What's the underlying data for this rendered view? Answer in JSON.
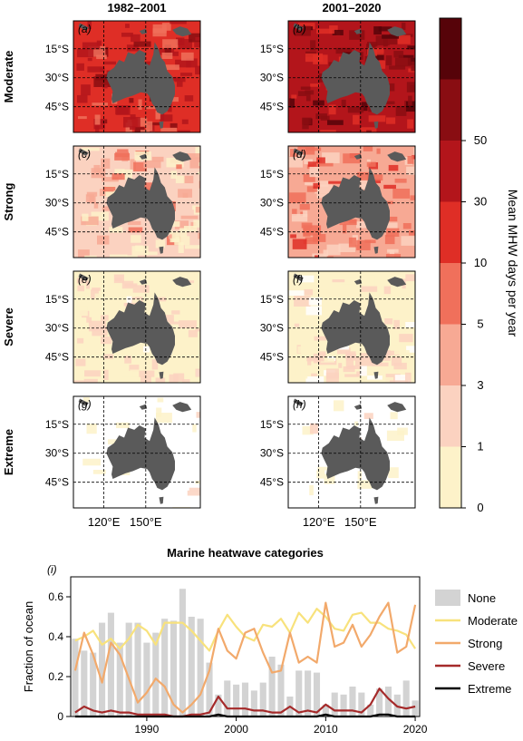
{
  "figure": {
    "period_headers": [
      "1982–2001",
      "2001–2020"
    ],
    "row_labels": [
      "Moderate",
      "Strong",
      "Severe",
      "Extreme"
    ],
    "panel_letters": [
      "(a)",
      "(b)",
      "(c)",
      "(d)",
      "(e)",
      "(f)",
      "(g)",
      "(h)"
    ],
    "lat_labels": [
      "15°S",
      "30°S",
      "45°S"
    ],
    "lon_labels": [
      "120°E",
      "150°E"
    ],
    "colorbar": {
      "title": "Mean MHW days per year",
      "bounds": [
        "0",
        "1",
        "3",
        "5",
        "10",
        "30",
        "50"
      ],
      "colors": [
        "#fdf2c9",
        "#fbd2c0",
        "#f7a994",
        "#f0705b",
        "#df2e26",
        "#b3151b",
        "#890d12",
        "#560309"
      ]
    },
    "maps": [
      {
        "panel": "(a)",
        "period": "1982–2001",
        "category": "Moderate",
        "ocean_level": 4
      },
      {
        "panel": "(b)",
        "period": "2001–2020",
        "category": "Moderate",
        "ocean_level": 5
      },
      {
        "panel": "(c)",
        "period": "1982–2001",
        "category": "Strong",
        "ocean_level": 1
      },
      {
        "panel": "(d)",
        "period": "2001–2020",
        "category": "Strong",
        "ocean_level": 2
      },
      {
        "panel": "(e)",
        "period": "1982–2001",
        "category": "Severe",
        "ocean_level": 0
      },
      {
        "panel": "(f)",
        "period": "2001–2020",
        "category": "Severe",
        "ocean_level": 0
      },
      {
        "panel": "(g)",
        "period": "1982–2001",
        "category": "Extreme",
        "ocean_level": -1
      },
      {
        "panel": "(h)",
        "period": "2001–2020",
        "category": "Extreme",
        "ocean_level": -1
      }
    ],
    "land_color": "#5a5a5a"
  },
  "chart_data": {
    "type": "bar",
    "panel_letter": "(i)",
    "title": "Marine heatwave categories",
    "ylabel": "Fraction of ocean",
    "xlabel": "",
    "x_ticks": [
      1990,
      2000,
      2010,
      2020
    ],
    "y_ticks": [
      "0",
      "0.2",
      "0.4",
      "0.6"
    ],
    "xlim": [
      1981.5,
      2020.5
    ],
    "ylim": [
      0,
      0.7
    ],
    "x": [
      1982,
      1983,
      1984,
      1985,
      1986,
      1987,
      1988,
      1989,
      1990,
      1991,
      1992,
      1993,
      1994,
      1995,
      1996,
      1997,
      1998,
      1999,
      2000,
      2001,
      2002,
      2003,
      2004,
      2005,
      2006,
      2007,
      2008,
      2009,
      2010,
      2011,
      2012,
      2013,
      2014,
      2015,
      2016,
      2017,
      2018,
      2019,
      2020
    ],
    "series": [
      {
        "name": "None",
        "kind": "bar",
        "color": "#d3d3d3",
        "values": [
          0.39,
          0.33,
          0.32,
          0.47,
          0.52,
          0.37,
          0.47,
          0.47,
          0.37,
          0.42,
          0.49,
          0.48,
          0.64,
          0.5,
          0.49,
          0.27,
          0.11,
          0.18,
          0.16,
          0.17,
          0.13,
          0.17,
          0.3,
          0.26,
          0.1,
          0.23,
          0.23,
          0.22,
          0.06,
          0.12,
          0.11,
          0.15,
          0.12,
          0.06,
          0.14,
          0.15,
          0.11,
          0.18,
          0.08
        ]
      },
      {
        "name": "Moderate",
        "kind": "line",
        "color": "#f8e27c",
        "values": [
          0.38,
          0.4,
          0.43,
          0.36,
          0.39,
          0.34,
          0.39,
          0.46,
          0.43,
          0.36,
          0.47,
          0.47,
          0.47,
          0.43,
          0.38,
          0.33,
          0.43,
          0.51,
          0.45,
          0.4,
          0.38,
          0.46,
          0.45,
          0.49,
          0.42,
          0.52,
          0.47,
          0.54,
          0.5,
          0.44,
          0.43,
          0.51,
          0.52,
          0.47,
          0.47,
          0.44,
          0.43,
          0.41,
          0.34
        ]
      },
      {
        "name": "Strong",
        "kind": "line",
        "color": "#f2a96b",
        "values": [
          0.23,
          0.42,
          0.31,
          0.17,
          0.37,
          0.31,
          0.19,
          0.07,
          0.12,
          0.19,
          0.15,
          0.06,
          0.02,
          0.06,
          0.11,
          0.23,
          0.44,
          0.33,
          0.29,
          0.42,
          0.44,
          0.32,
          0.22,
          0.23,
          0.42,
          0.27,
          0.3,
          0.27,
          0.57,
          0.35,
          0.37,
          0.46,
          0.35,
          0.41,
          0.5,
          0.57,
          0.32,
          0.35,
          0.56
        ]
      },
      {
        "name": "Severe",
        "kind": "line",
        "color": "#a52a2a",
        "values": [
          0.02,
          0.05,
          0.03,
          0.02,
          0.03,
          0.02,
          0.02,
          0.01,
          0.01,
          0.01,
          0.01,
          0.0,
          0.0,
          0.01,
          0.01,
          0.02,
          0.1,
          0.04,
          0.04,
          0.04,
          0.03,
          0.03,
          0.02,
          0.02,
          0.05,
          0.02,
          0.03,
          0.02,
          0.06,
          0.03,
          0.03,
          0.03,
          0.02,
          0.06,
          0.14,
          0.09,
          0.05,
          0.04,
          0.05
        ]
      },
      {
        "name": "Extreme",
        "kind": "line",
        "color": "#000000",
        "values": [
          0.0,
          0.0,
          0.0,
          0.0,
          0.0,
          0.0,
          0.0,
          0.0,
          0.0,
          0.0,
          0.0,
          0.0,
          0.0,
          0.0,
          0.0,
          0.0,
          0.01,
          0.0,
          0.0,
          0.0,
          0.0,
          0.0,
          0.0,
          0.0,
          0.0,
          0.0,
          0.0,
          0.0,
          0.01,
          0.0,
          0.0,
          0.0,
          0.0,
          0.0,
          0.01,
          0.01,
          0.0,
          0.0,
          0.0
        ]
      }
    ],
    "legend": {
      "position": "right",
      "entries": [
        "None",
        "Moderate",
        "Strong",
        "Severe",
        "Extreme"
      ]
    }
  }
}
